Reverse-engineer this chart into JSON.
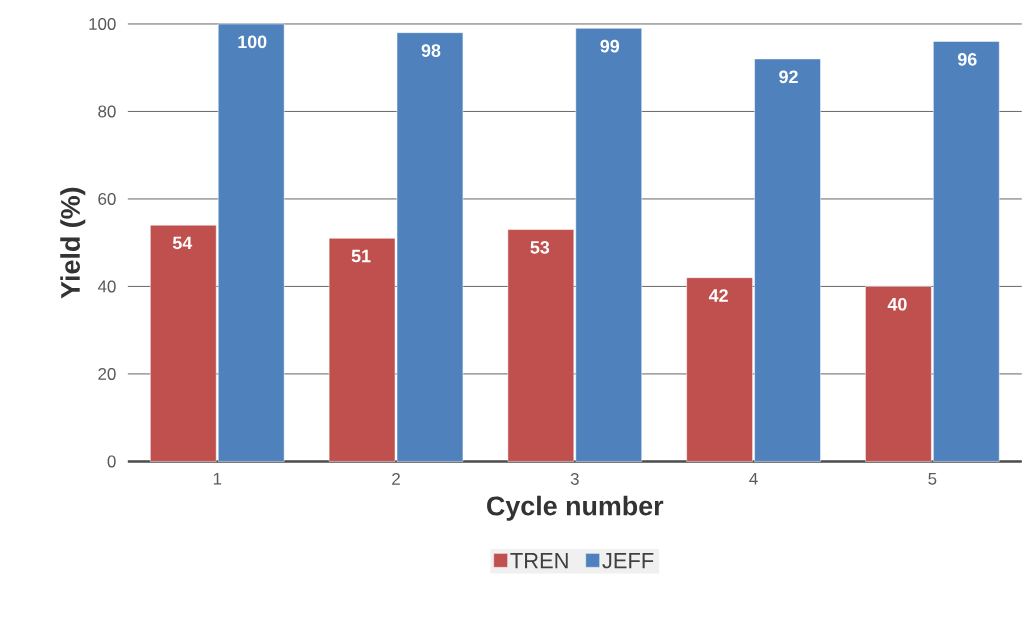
{
  "chart_data": {
    "type": "bar",
    "xlabel": "Cycle number",
    "ylabel": "Yield (%)",
    "categories": [
      "1",
      "2",
      "3",
      "4",
      "5"
    ],
    "series": [
      {
        "name": "TREN",
        "color": "#c0504d",
        "values": [
          54,
          51,
          53,
          42,
          40
        ]
      },
      {
        "name": "JEFF",
        "color": "#4f81bd",
        "values": [
          100,
          98,
          99,
          92,
          96
        ]
      }
    ],
    "ylim": [
      0,
      100
    ],
    "yticks": [
      0,
      20,
      40,
      60,
      80,
      100
    ],
    "grid": "y",
    "legend": "bottom",
    "data_labels": true
  }
}
